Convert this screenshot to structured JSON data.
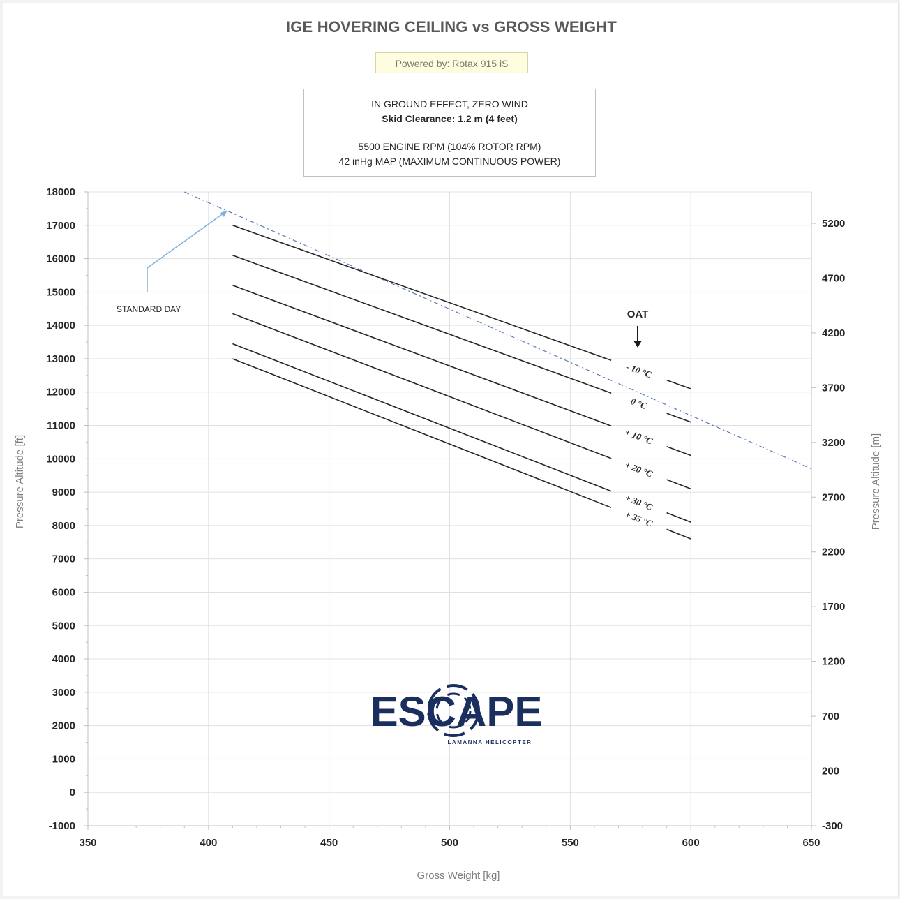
{
  "chart_data": {
    "type": "line",
    "title": "IGE HOVERING CEILING vs GROSS WEIGHT",
    "subtitle": "Powered by: Rotax 915 iS",
    "conditions": [
      "IN GROUND EFFECT, ZERO WIND",
      "Skid Clearance: 1.2 m (4 feet)",
      "5500 ENGINE RPM (104% ROTOR RPM)",
      "42 inHg MAP (MAXIMUM CONTINUOUS POWER)"
    ],
    "xlabel": "Gross Weight   [kg]",
    "ylabel": "Pressure Altitude   [ft]",
    "y2label": "Pressure Altitude   [m]",
    "xlim": [
      350,
      650
    ],
    "ylim": [
      -1000,
      18000
    ],
    "xticks": [
      "350",
      "400",
      "450",
      "500",
      "550",
      "600",
      "650"
    ],
    "yticks": [
      "18000",
      "17000",
      "16000",
      "15000",
      "14000",
      "13000",
      "12000",
      "11000",
      "10000",
      "9000",
      "8000",
      "7000",
      "6000",
      "5000",
      "4000",
      "3000",
      "2000",
      "1000",
      "0",
      "-1000"
    ],
    "y2ticks": [
      "5200",
      "4700",
      "4200",
      "3700",
      "3200",
      "2700",
      "2200",
      "1700",
      "1200",
      "700",
      "200",
      "-300"
    ],
    "grid": true,
    "legend_title": "OAT",
    "series": [
      {
        "name": "- 10 °C",
        "x": [
          410,
          600
        ],
        "y": [
          17000,
          12100
        ]
      },
      {
        "name": "0 °C",
        "x": [
          410,
          600
        ],
        "y": [
          16100,
          11100
        ]
      },
      {
        "name": "+ 10 °C",
        "x": [
          410,
          600
        ],
        "y": [
          15200,
          10100
        ]
      },
      {
        "name": "+ 20 °C",
        "x": [
          410,
          600
        ],
        "y": [
          14350,
          9100
        ]
      },
      {
        "name": "+ 30 °C",
        "x": [
          410,
          600
        ],
        "y": [
          13450,
          8100
        ]
      },
      {
        "name": "+ 35 °C",
        "x": [
          410,
          600
        ],
        "y": [
          13000,
          7600
        ]
      }
    ],
    "standard_day": {
      "x": [
        390,
        650
      ],
      "y": [
        18000,
        9700
      ],
      "style": "dash-dot"
    },
    "annotations": {
      "standard_day_label": "STANDARD DAY",
      "oat_label": "OAT"
    }
  },
  "logo": {
    "name": "ESCAPE",
    "tagline": "LAMANNA HELICOPTER"
  },
  "colors": {
    "curve": "#262626",
    "standard_day": "#5b7ab5",
    "arrow": "#7fb0e0",
    "grid": "#e0e0e0",
    "logo": "#1b2f5e"
  }
}
